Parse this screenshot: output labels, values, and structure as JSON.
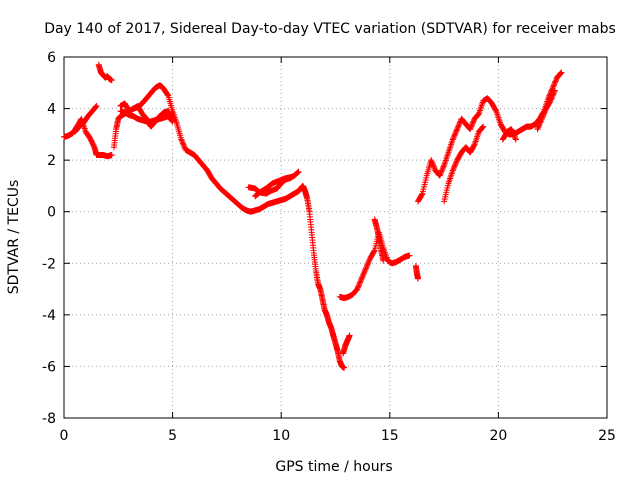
{
  "chart_data": {
    "type": "scatter",
    "title": "Day 140 of 2017, Sidereal Day-to-day VTEC variation (SDTVAR) for receiver mabs",
    "xlabel": "GPS time / hours",
    "ylabel": "SDTVAR / TECUs",
    "xlim": [
      0,
      25
    ],
    "ylim": [
      -8,
      6
    ],
    "x_ticks": [
      "0",
      "5",
      "10",
      "15",
      "20",
      "25"
    ],
    "y_ticks": [
      "-8",
      "-6",
      "-4",
      "-2",
      "0",
      "2",
      "4",
      "6"
    ],
    "grid": true,
    "legend": "none",
    "marker": "+",
    "color": "#ff0000",
    "series": [
      {
        "x": [
          0.0,
          0.2,
          0.4,
          0.6,
          0.8,
          1.0,
          1.2,
          1.4,
          1.5,
          1.6,
          1.8,
          2.0,
          2.2
        ],
        "y": [
          2.9,
          2.95,
          3.05,
          3.3,
          3.6,
          3.1,
          2.85,
          2.5,
          2.2,
          2.2,
          2.2,
          2.15,
          2.2
        ]
      },
      {
        "x": [
          0.5,
          0.7,
          0.9,
          1.1,
          1.3,
          1.5
        ],
        "y": [
          3.1,
          3.3,
          3.45,
          3.7,
          3.9,
          4.1
        ]
      },
      {
        "x": [
          1.6,
          1.7,
          1.8,
          1.9,
          2.0,
          2.1,
          2.2
        ],
        "y": [
          5.7,
          5.4,
          5.3,
          5.2,
          5.25,
          5.15,
          5.1
        ]
      },
      {
        "x": [
          2.3,
          2.4,
          2.5,
          2.6,
          2.8,
          3.0,
          3.2,
          3.4,
          3.6,
          3.8,
          4.0,
          4.2,
          4.4,
          4.5,
          4.6,
          4.8,
          5.0,
          5.2,
          5.4,
          5.6,
          5.8,
          6.0,
          6.2,
          6.4,
          6.6,
          6.8,
          7.0,
          7.2,
          7.4,
          7.6,
          7.8,
          8.0,
          8.2,
          8.4,
          8.6,
          8.8,
          9.0,
          9.2,
          9.4,
          9.6,
          9.8,
          10.0,
          10.2,
          10.4,
          10.6,
          10.8,
          10.9,
          11.0,
          11.1,
          11.2,
          11.3,
          11.4,
          11.5,
          11.6,
          11.7,
          11.8,
          11.9,
          12.0,
          12.1,
          12.2,
          12.3,
          12.4,
          12.5,
          12.6,
          12.7,
          12.8,
          12.9
        ],
        "y": [
          2.5,
          3.2,
          3.6,
          3.7,
          3.8,
          3.9,
          4.0,
          4.05,
          4.2,
          4.4,
          4.6,
          4.8,
          4.9,
          4.85,
          4.75,
          4.5,
          3.9,
          3.4,
          2.8,
          2.4,
          2.3,
          2.2,
          2.0,
          1.8,
          1.6,
          1.3,
          1.1,
          0.9,
          0.75,
          0.6,
          0.45,
          0.3,
          0.15,
          0.05,
          0.0,
          0.05,
          0.1,
          0.2,
          0.3,
          0.35,
          0.4,
          0.45,
          0.5,
          0.6,
          0.7,
          0.8,
          0.9,
          1.0,
          0.8,
          0.5,
          0.0,
          -0.8,
          -1.6,
          -2.3,
          -2.8,
          -3.0,
          -3.4,
          -3.8,
          -4.0,
          -4.3,
          -4.5,
          -4.8,
          -5.1,
          -5.4,
          -5.8,
          -6.0,
          -6.05
        ]
      },
      {
        "x": [
          2.6,
          2.8,
          3.0,
          3.2,
          3.4,
          3.6,
          3.8,
          4.0,
          4.2,
          4.4,
          4.6,
          4.8,
          5.0
        ],
        "y": [
          3.9,
          3.85,
          3.75,
          3.7,
          3.6,
          3.55,
          3.5,
          3.5,
          3.55,
          3.6,
          3.65,
          3.7,
          3.5
        ]
      },
      {
        "x": [
          2.6,
          2.8,
          3.0,
          3.2,
          3.4,
          3.6,
          3.8,
          4.0,
          4.2,
          4.4,
          4.6,
          4.8,
          5.0
        ],
        "y": [
          4.1,
          4.2,
          3.9,
          4.0,
          4.1,
          3.8,
          3.6,
          3.3,
          3.5,
          3.7,
          3.85,
          3.9,
          3.6
        ]
      },
      {
        "x": [
          8.5,
          8.8,
          9.0,
          9.3,
          9.5,
          9.8,
          10.0,
          10.2,
          10.4,
          10.6,
          10.8
        ],
        "y": [
          0.95,
          0.9,
          0.75,
          0.7,
          0.8,
          0.9,
          1.1,
          1.25,
          1.3,
          1.4,
          1.55
        ]
      },
      {
        "x": [
          8.8,
          9.0,
          9.3,
          9.6,
          9.9,
          10.2,
          10.5
        ],
        "y": [
          0.6,
          0.75,
          0.9,
          1.1,
          1.2,
          1.3,
          1.35
        ]
      },
      {
        "x": [
          12.7,
          12.9,
          13.1,
          13.3,
          13.5,
          13.7,
          13.9,
          14.1,
          14.3,
          14.5,
          14.7,
          14.9,
          15.1,
          15.3,
          15.5,
          15.7,
          15.9
        ],
        "y": [
          -3.3,
          -3.35,
          -3.3,
          -3.2,
          -3.0,
          -2.6,
          -2.2,
          -1.8,
          -1.5,
          -0.8,
          -1.4,
          -1.9,
          -2.0,
          -1.95,
          -1.85,
          -1.75,
          -1.7
        ]
      },
      {
        "x": [
          12.85,
          12.95,
          13.05,
          13.15
        ],
        "y": [
          -5.5,
          -5.2,
          -5.0,
          -4.8
        ]
      },
      {
        "x": [
          14.3,
          14.4,
          14.5,
          14.6,
          14.7
        ],
        "y": [
          -0.3,
          -0.6,
          -1.0,
          -1.5,
          -1.9
        ]
      },
      {
        "x": [
          16.2,
          16.25,
          16.3
        ],
        "y": [
          -2.1,
          -2.4,
          -2.6
        ]
      },
      {
        "x": [
          16.3,
          16.5,
          16.7,
          16.9,
          17.1,
          17.3,
          17.5,
          17.7,
          17.9,
          18.1,
          18.3,
          18.5,
          18.7,
          18.9,
          19.1,
          19.3,
          19.5,
          19.7,
          19.9,
          20.1,
          20.3,
          20.5,
          20.7,
          20.9,
          21.1,
          21.3,
          21.5,
          21.7,
          21.9,
          22.1,
          22.3,
          22.5,
          22.7,
          22.9
        ],
        "y": [
          0.4,
          0.7,
          1.4,
          2.0,
          1.6,
          1.4,
          1.8,
          2.3,
          2.8,
          3.2,
          3.6,
          3.4,
          3.2,
          3.6,
          3.8,
          4.3,
          4.4,
          4.2,
          3.9,
          3.4,
          3.1,
          3.0,
          3.0,
          3.1,
          3.2,
          3.3,
          3.3,
          3.4,
          3.6,
          3.9,
          4.4,
          4.8,
          5.2,
          5.4
        ]
      },
      {
        "x": [
          17.5,
          17.7,
          17.9,
          18.1,
          18.3,
          18.5,
          18.7,
          18.9,
          19.1,
          19.3
        ],
        "y": [
          0.4,
          1.1,
          1.6,
          2.0,
          2.3,
          2.5,
          2.3,
          2.6,
          3.1,
          3.3
        ]
      },
      {
        "x": [
          20.2,
          20.4,
          20.6,
          20.8
        ],
        "y": [
          2.8,
          3.1,
          3.2,
          2.8
        ]
      },
      {
        "x": [
          21.8,
          22.0,
          22.2,
          22.4,
          22.6
        ],
        "y": [
          3.2,
          3.6,
          4.0,
          4.3,
          4.7
        ]
      }
    ]
  }
}
